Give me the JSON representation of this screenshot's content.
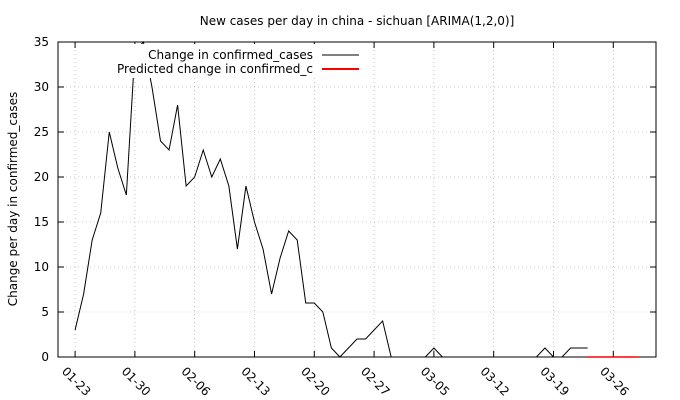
{
  "chart_data": {
    "type": "line",
    "title": "New cases per day in china - sichuan [ARIMA(1,2,0)]",
    "xlabel": "",
    "ylabel": "Change per day in confirmed_cases",
    "ylim": [
      0,
      35
    ],
    "yticks": [
      0,
      5,
      10,
      15,
      20,
      25,
      30,
      35
    ],
    "xlim": [
      "2020-01-21",
      "2020-03-31"
    ],
    "xticks": [
      {
        "date": "2020-01-23",
        "label": "01-23"
      },
      {
        "date": "2020-01-30",
        "label": "01-30"
      },
      {
        "date": "2020-02-06",
        "label": "02-06"
      },
      {
        "date": "2020-02-13",
        "label": "02-13"
      },
      {
        "date": "2020-02-20",
        "label": "02-20"
      },
      {
        "date": "2020-02-27",
        "label": "02-27"
      },
      {
        "date": "2020-03-05",
        "label": "03-05"
      },
      {
        "date": "2020-03-12",
        "label": "03-12"
      },
      {
        "date": "2020-03-19",
        "label": "03-19"
      },
      {
        "date": "2020-03-26",
        "label": "03-26"
      }
    ],
    "grid": true,
    "legend_position": "top-left",
    "series": [
      {
        "name": "Change in confirmed_cases",
        "color": "#000000",
        "points": [
          [
            "2020-01-23",
            3
          ],
          [
            "2020-01-24",
            7
          ],
          [
            "2020-01-25",
            13
          ],
          [
            "2020-01-26",
            16
          ],
          [
            "2020-01-27",
            25
          ],
          [
            "2020-01-28",
            21
          ],
          [
            "2020-01-29",
            18
          ],
          [
            "2020-01-30",
            34
          ],
          [
            "2020-01-31",
            35
          ],
          [
            "2020-02-01",
            30
          ],
          [
            "2020-02-02",
            24
          ],
          [
            "2020-02-03",
            23
          ],
          [
            "2020-02-04",
            28
          ],
          [
            "2020-02-05",
            19
          ],
          [
            "2020-02-06",
            20
          ],
          [
            "2020-02-07",
            23
          ],
          [
            "2020-02-08",
            20
          ],
          [
            "2020-02-09",
            22
          ],
          [
            "2020-02-10",
            19
          ],
          [
            "2020-02-11",
            12
          ],
          [
            "2020-02-12",
            19
          ],
          [
            "2020-02-13",
            15
          ],
          [
            "2020-02-14",
            12
          ],
          [
            "2020-02-15",
            7
          ],
          [
            "2020-02-16",
            11
          ],
          [
            "2020-02-17",
            14
          ],
          [
            "2020-02-18",
            13
          ],
          [
            "2020-02-19",
            6
          ],
          [
            "2020-02-20",
            6
          ],
          [
            "2020-02-21",
            5
          ],
          [
            "2020-02-22",
            1
          ],
          [
            "2020-02-23",
            0
          ],
          [
            "2020-02-24",
            1
          ],
          [
            "2020-02-25",
            2
          ],
          [
            "2020-02-26",
            2
          ],
          [
            "2020-02-27",
            3
          ],
          [
            "2020-02-28",
            4
          ],
          [
            "2020-02-29",
            0
          ],
          [
            "2020-03-01",
            0
          ],
          [
            "2020-03-02",
            0
          ],
          [
            "2020-03-03",
            0
          ],
          [
            "2020-03-04",
            0
          ],
          [
            "2020-03-05",
            1
          ],
          [
            "2020-03-06",
            0
          ],
          [
            "2020-03-07",
            0
          ],
          [
            "2020-03-08",
            0
          ],
          [
            "2020-03-09",
            0
          ],
          [
            "2020-03-10",
            0
          ],
          [
            "2020-03-11",
            0
          ],
          [
            "2020-03-12",
            0
          ],
          [
            "2020-03-13",
            0
          ],
          [
            "2020-03-14",
            0
          ],
          [
            "2020-03-15",
            0
          ],
          [
            "2020-03-16",
            0
          ],
          [
            "2020-03-17",
            0
          ],
          [
            "2020-03-18",
            1
          ],
          [
            "2020-03-19",
            0
          ],
          [
            "2020-03-20",
            0
          ],
          [
            "2020-03-21",
            1
          ],
          [
            "2020-03-22",
            1
          ],
          [
            "2020-03-23",
            1
          ]
        ]
      },
      {
        "name": "Predicted change in confirmed_c",
        "color": "#ff0000",
        "points": [
          [
            "2020-03-23",
            0
          ],
          [
            "2020-03-24",
            0
          ],
          [
            "2020-03-25",
            0
          ],
          [
            "2020-03-26",
            0
          ],
          [
            "2020-03-27",
            0
          ],
          [
            "2020-03-28",
            0
          ],
          [
            "2020-03-29",
            0
          ]
        ]
      }
    ]
  }
}
